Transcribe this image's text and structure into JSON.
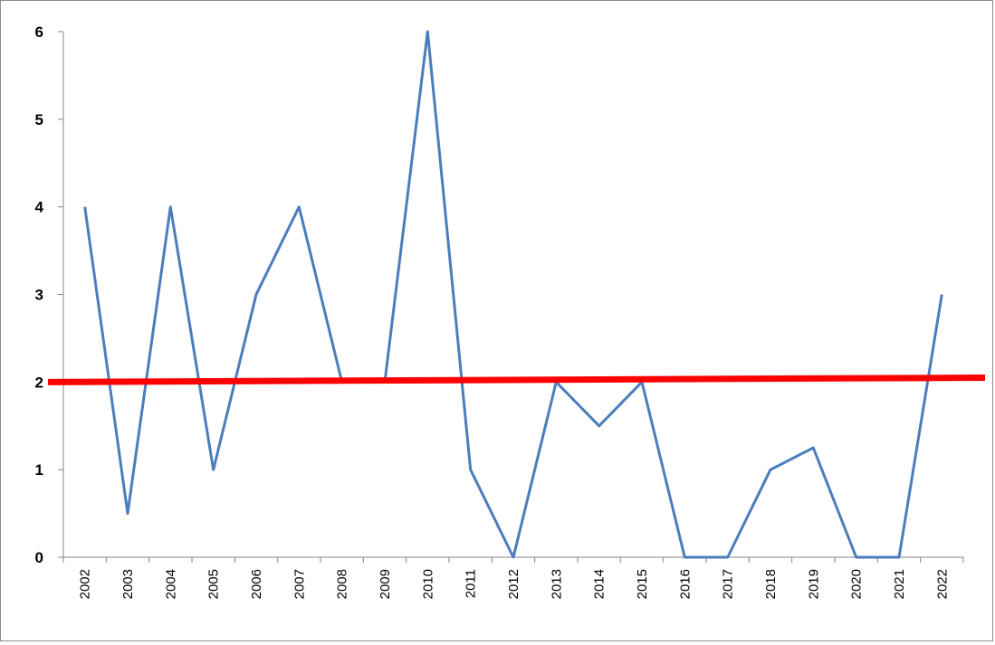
{
  "chart_data": {
    "type": "line",
    "title": "",
    "xlabel": "",
    "ylabel": "",
    "categories": [
      "2002",
      "2003",
      "2004",
      "2005",
      "2006",
      "2007",
      "2008",
      "2009",
      "2010",
      "2011",
      "2012",
      "2013",
      "2014",
      "2015",
      "2016",
      "2017",
      "2018",
      "2019",
      "2020",
      "2021",
      "2022"
    ],
    "series": [
      {
        "values": [
          4,
          0.5,
          4,
          1,
          3,
          4,
          2,
          2,
          6,
          1,
          0,
          2,
          1.5,
          2,
          0,
          0,
          1,
          1.25,
          0,
          0,
          3
        ],
        "color": "#4a7ebb"
      }
    ],
    "trendline": {
      "start": 2.0,
      "end": 2.05,
      "color": "#ff0000"
    },
    "ylim": [
      0,
      6
    ],
    "yticks": [
      0,
      1,
      2,
      3,
      4,
      5,
      6
    ],
    "grid": false,
    "legend": "none"
  }
}
